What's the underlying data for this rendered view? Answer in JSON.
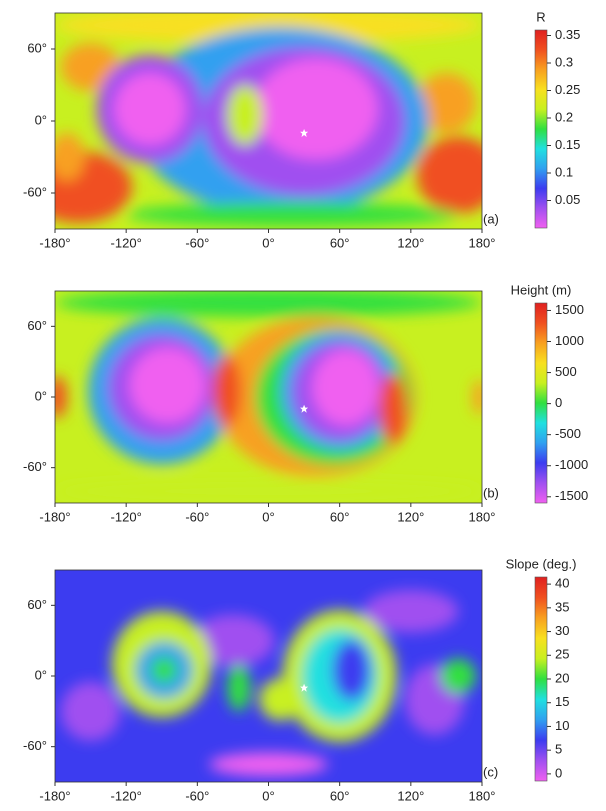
{
  "chart_data": [
    {
      "type": "map",
      "panel_label": "(a)",
      "xlim": [
        -180,
        180
      ],
      "ylim": [
        -90,
        90
      ],
      "xticks": [
        {
          "value": -180,
          "label": "-180°"
        },
        {
          "value": -120,
          "label": "-120°"
        },
        {
          "value": -60,
          "label": "-60°"
        },
        {
          "value": 0,
          "label": "0°"
        },
        {
          "value": 60,
          "label": "60°"
        },
        {
          "value": 120,
          "label": "120°"
        },
        {
          "value": 180,
          "label": "180°"
        }
      ],
      "yticks": [
        {
          "value": 60,
          "label": "60°"
        },
        {
          "value": 0,
          "label": "0°"
        },
        {
          "value": -60,
          "label": "-60°"
        }
      ],
      "colorbar": {
        "title": "R",
        "lim": [
          0,
          0.36
        ],
        "ticks": [
          0.35,
          0.3,
          0.25,
          0.2,
          0.15,
          0.1,
          0.05
        ]
      },
      "colors": [
        "#f060f0",
        "#a050f0",
        "#3c3cf0",
        "#30a0f0",
        "#20e0e0",
        "#30e040",
        "#c8f020",
        "#f8e020",
        "#f8a020",
        "#f05020",
        "#e02020"
      ]
    },
    {
      "type": "map",
      "panel_label": "(b)",
      "xlim": [
        -180,
        180
      ],
      "ylim": [
        -90,
        90
      ],
      "xticks": [
        {
          "value": -180,
          "label": "-180°"
        },
        {
          "value": -120,
          "label": "-120°"
        },
        {
          "value": -60,
          "label": "-60°"
        },
        {
          "value": 0,
          "label": "0°"
        },
        {
          "value": 60,
          "label": "60°"
        },
        {
          "value": 120,
          "label": "120°"
        },
        {
          "value": 180,
          "label": "180°"
        }
      ],
      "yticks": [
        {
          "value": 60,
          "label": "60°"
        },
        {
          "value": 0,
          "label": "0°"
        },
        {
          "value": -60,
          "label": "-60°"
        }
      ],
      "colorbar": {
        "title": "Height (m)",
        "lim": [
          -1600,
          1620
        ],
        "ticks": [
          1500,
          1000,
          500,
          0,
          -500,
          -1000,
          -1500
        ]
      },
      "colors": [
        "#f060f0",
        "#a050f0",
        "#3c3cf0",
        "#30a0f0",
        "#20e0e0",
        "#30e040",
        "#c8f020",
        "#f8e020",
        "#f8a020",
        "#f05020",
        "#e02020"
      ]
    },
    {
      "type": "map",
      "panel_label": "(c)",
      "xlim": [
        -180,
        180
      ],
      "ylim": [
        -90,
        90
      ],
      "xticks": [
        {
          "value": -180,
          "label": "-180°"
        },
        {
          "value": -120,
          "label": "-120°"
        },
        {
          "value": -60,
          "label": "-60°"
        },
        {
          "value": 0,
          "label": "0°"
        },
        {
          "value": 60,
          "label": "60°"
        },
        {
          "value": 120,
          "label": "120°"
        },
        {
          "value": 180,
          "label": "180°"
        }
      ],
      "yticks": [
        {
          "value": 60,
          "label": "60°"
        },
        {
          "value": 0,
          "label": "0°"
        },
        {
          "value": -60,
          "label": "-60°"
        }
      ],
      "colorbar": {
        "title": "Slope (deg.)",
        "lim": [
          -1.5,
          41.5
        ],
        "ticks": [
          40,
          35,
          30,
          25,
          20,
          15,
          10,
          5,
          0
        ]
      },
      "colors": [
        "#f060f0",
        "#a050f0",
        "#3c3cf0",
        "#30a0f0",
        "#20e0e0",
        "#30e040",
        "#c8f020",
        "#f8e020",
        "#f8a020",
        "#f05020",
        "#e02020"
      ]
    }
  ]
}
